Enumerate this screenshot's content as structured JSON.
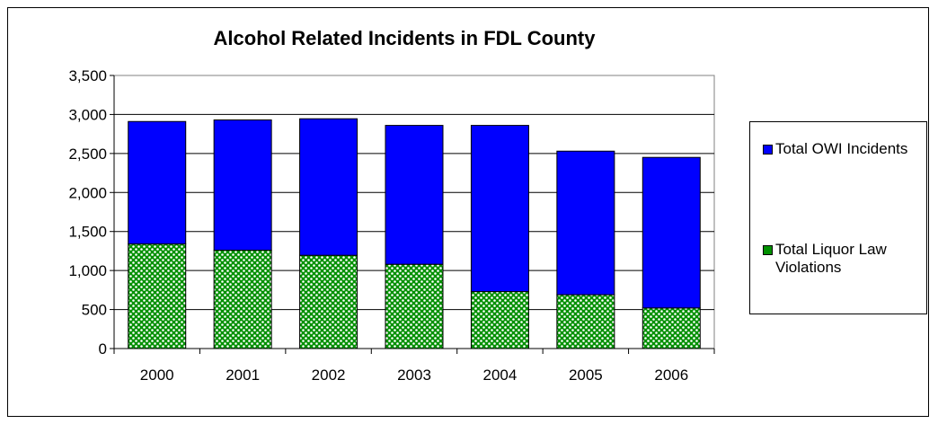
{
  "chart_data": {
    "type": "bar",
    "stacked": true,
    "title": "Alcohol Related Incidents in FDL County",
    "xlabel": "",
    "ylabel": "",
    "categories": [
      "2000",
      "2001",
      "2002",
      "2003",
      "2004",
      "2005",
      "2006"
    ],
    "series": [
      {
        "name": "Total Liquor Law Violations",
        "values": [
          1340,
          1260,
          1195,
          1080,
          730,
          690,
          520
        ],
        "color": "#00a000",
        "pattern": "green-white-dots"
      },
      {
        "name": "Total OWI Incidents",
        "values": [
          1570,
          1670,
          1750,
          1780,
          2130,
          1840,
          1930
        ],
        "color": "#0000ff"
      }
    ],
    "ylim": [
      0,
      3500
    ],
    "yticks": [
      0,
      500,
      1000,
      1500,
      2000,
      2500,
      3000,
      3500
    ],
    "ytick_labels": [
      "0",
      "500",
      "1,000",
      "1,500",
      "2,000",
      "2,500",
      "3,000",
      "3,500"
    ],
    "grid": true,
    "legend_position": "right",
    "legend_order": [
      "Total OWI Incidents",
      "Total Liquor Law Violations"
    ]
  }
}
